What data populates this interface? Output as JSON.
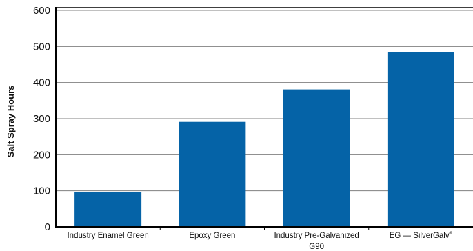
{
  "chart_data": {
    "type": "bar",
    "categories": [
      "Industry Enamel Green",
      "Epoxy Green",
      "Industry Pre-Galvanized G90",
      "EG — SilverGalv"
    ],
    "category_lines": [
      [
        "Industry Enamel Green"
      ],
      [
        "Epoxy Green"
      ],
      [
        "Industry Pre-Galvanized",
        "G90"
      ],
      [
        "EG — SilverGalv"
      ]
    ],
    "category_superscripts": [
      "",
      "",
      "",
      "®"
    ],
    "values": [
      97,
      291,
      381,
      485
    ],
    "ylabel": "Salt Spray Hours",
    "ylim": [
      0,
      600
    ],
    "yticks": [
      0,
      100,
      200,
      300,
      400,
      500,
      600
    ],
    "grid": true,
    "bar_color": "#0563a7",
    "axis_color": "#000000",
    "grid_color": "#808080"
  }
}
